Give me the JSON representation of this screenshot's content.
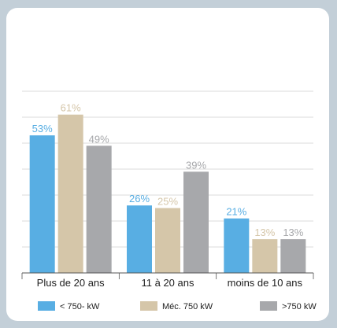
{
  "chart_data": {
    "type": "bar",
    "categories": [
      "Plus de 20 ans",
      "11 à 20 ans",
      "moins de 10 ans"
    ],
    "series": [
      {
        "name": "< 750- kW",
        "values": [
          53,
          26,
          21
        ],
        "color": "#58aee3",
        "labels": [
          "53%",
          "26%",
          "21%"
        ]
      },
      {
        "name": "Méc. 750 kW",
        "values": [
          61,
          25,
          13
        ],
        "color": "#d5c6a9",
        "labels": [
          "61%",
          "25%",
          "13%"
        ]
      },
      {
        "name": ">750 kW",
        "values": [
          49,
          39,
          13
        ],
        "color": "#a7a8ab",
        "labels": [
          "49%",
          "39%",
          "13%"
        ]
      }
    ],
    "title": "",
    "xlabel": "",
    "ylabel": "",
    "ylim": [
      0,
      70
    ],
    "grid": true,
    "legend": "bottom"
  }
}
